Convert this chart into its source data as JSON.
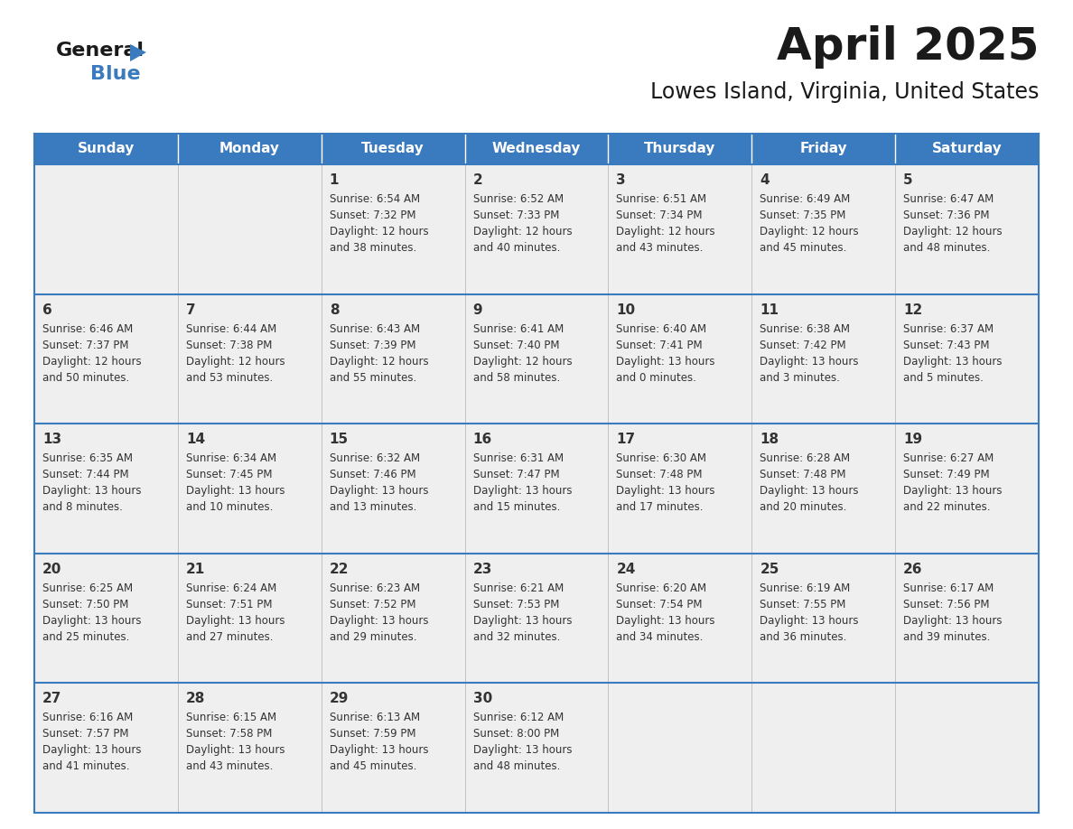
{
  "title": "April 2025",
  "subtitle": "Lowes Island, Virginia, United States",
  "header_color": "#3a7abf",
  "header_text_color": "#ffffff",
  "cell_bg": "#efefef",
  "border_color": "#3a7abf",
  "text_color": "#333333",
  "days_of_week": [
    "Sunday",
    "Monday",
    "Tuesday",
    "Wednesday",
    "Thursday",
    "Friday",
    "Saturday"
  ],
  "weeks": [
    [
      {
        "day": "",
        "info": ""
      },
      {
        "day": "",
        "info": ""
      },
      {
        "day": "1",
        "info": "Sunrise: 6:54 AM\nSunset: 7:32 PM\nDaylight: 12 hours\nand 38 minutes."
      },
      {
        "day": "2",
        "info": "Sunrise: 6:52 AM\nSunset: 7:33 PM\nDaylight: 12 hours\nand 40 minutes."
      },
      {
        "day": "3",
        "info": "Sunrise: 6:51 AM\nSunset: 7:34 PM\nDaylight: 12 hours\nand 43 minutes."
      },
      {
        "day": "4",
        "info": "Sunrise: 6:49 AM\nSunset: 7:35 PM\nDaylight: 12 hours\nand 45 minutes."
      },
      {
        "day": "5",
        "info": "Sunrise: 6:47 AM\nSunset: 7:36 PM\nDaylight: 12 hours\nand 48 minutes."
      }
    ],
    [
      {
        "day": "6",
        "info": "Sunrise: 6:46 AM\nSunset: 7:37 PM\nDaylight: 12 hours\nand 50 minutes."
      },
      {
        "day": "7",
        "info": "Sunrise: 6:44 AM\nSunset: 7:38 PM\nDaylight: 12 hours\nand 53 minutes."
      },
      {
        "day": "8",
        "info": "Sunrise: 6:43 AM\nSunset: 7:39 PM\nDaylight: 12 hours\nand 55 minutes."
      },
      {
        "day": "9",
        "info": "Sunrise: 6:41 AM\nSunset: 7:40 PM\nDaylight: 12 hours\nand 58 minutes."
      },
      {
        "day": "10",
        "info": "Sunrise: 6:40 AM\nSunset: 7:41 PM\nDaylight: 13 hours\nand 0 minutes."
      },
      {
        "day": "11",
        "info": "Sunrise: 6:38 AM\nSunset: 7:42 PM\nDaylight: 13 hours\nand 3 minutes."
      },
      {
        "day": "12",
        "info": "Sunrise: 6:37 AM\nSunset: 7:43 PM\nDaylight: 13 hours\nand 5 minutes."
      }
    ],
    [
      {
        "day": "13",
        "info": "Sunrise: 6:35 AM\nSunset: 7:44 PM\nDaylight: 13 hours\nand 8 minutes."
      },
      {
        "day": "14",
        "info": "Sunrise: 6:34 AM\nSunset: 7:45 PM\nDaylight: 13 hours\nand 10 minutes."
      },
      {
        "day": "15",
        "info": "Sunrise: 6:32 AM\nSunset: 7:46 PM\nDaylight: 13 hours\nand 13 minutes."
      },
      {
        "day": "16",
        "info": "Sunrise: 6:31 AM\nSunset: 7:47 PM\nDaylight: 13 hours\nand 15 minutes."
      },
      {
        "day": "17",
        "info": "Sunrise: 6:30 AM\nSunset: 7:48 PM\nDaylight: 13 hours\nand 17 minutes."
      },
      {
        "day": "18",
        "info": "Sunrise: 6:28 AM\nSunset: 7:48 PM\nDaylight: 13 hours\nand 20 minutes."
      },
      {
        "day": "19",
        "info": "Sunrise: 6:27 AM\nSunset: 7:49 PM\nDaylight: 13 hours\nand 22 minutes."
      }
    ],
    [
      {
        "day": "20",
        "info": "Sunrise: 6:25 AM\nSunset: 7:50 PM\nDaylight: 13 hours\nand 25 minutes."
      },
      {
        "day": "21",
        "info": "Sunrise: 6:24 AM\nSunset: 7:51 PM\nDaylight: 13 hours\nand 27 minutes."
      },
      {
        "day": "22",
        "info": "Sunrise: 6:23 AM\nSunset: 7:52 PM\nDaylight: 13 hours\nand 29 minutes."
      },
      {
        "day": "23",
        "info": "Sunrise: 6:21 AM\nSunset: 7:53 PM\nDaylight: 13 hours\nand 32 minutes."
      },
      {
        "day": "24",
        "info": "Sunrise: 6:20 AM\nSunset: 7:54 PM\nDaylight: 13 hours\nand 34 minutes."
      },
      {
        "day": "25",
        "info": "Sunrise: 6:19 AM\nSunset: 7:55 PM\nDaylight: 13 hours\nand 36 minutes."
      },
      {
        "day": "26",
        "info": "Sunrise: 6:17 AM\nSunset: 7:56 PM\nDaylight: 13 hours\nand 39 minutes."
      }
    ],
    [
      {
        "day": "27",
        "info": "Sunrise: 6:16 AM\nSunset: 7:57 PM\nDaylight: 13 hours\nand 41 minutes."
      },
      {
        "day": "28",
        "info": "Sunrise: 6:15 AM\nSunset: 7:58 PM\nDaylight: 13 hours\nand 43 minutes."
      },
      {
        "day": "29",
        "info": "Sunrise: 6:13 AM\nSunset: 7:59 PM\nDaylight: 13 hours\nand 45 minutes."
      },
      {
        "day": "30",
        "info": "Sunrise: 6:12 AM\nSunset: 8:00 PM\nDaylight: 13 hours\nand 48 minutes."
      },
      {
        "day": "",
        "info": ""
      },
      {
        "day": "",
        "info": ""
      },
      {
        "day": "",
        "info": ""
      }
    ]
  ],
  "logo_general_color": "#1a1a1a",
  "logo_blue_color": "#3a7abf",
  "title_fontsize": 36,
  "subtitle_fontsize": 17,
  "header_fontsize": 11,
  "day_num_fontsize": 11,
  "info_fontsize": 8.5
}
